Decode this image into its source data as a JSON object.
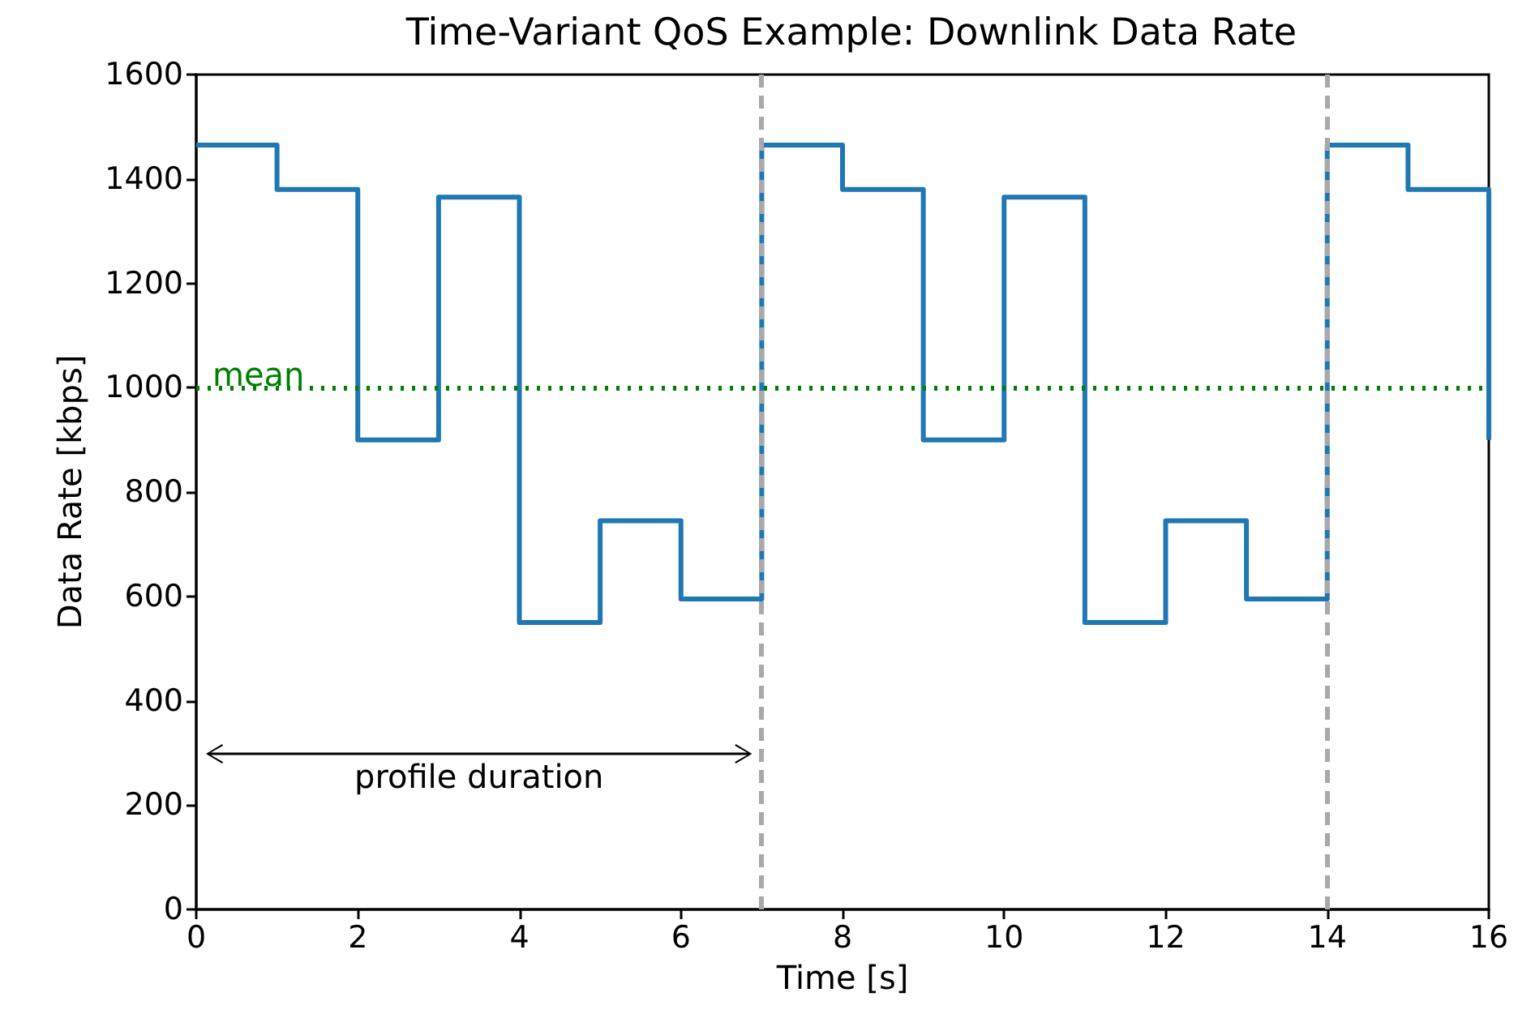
{
  "chart_data": {
    "type": "step",
    "title": "Time-Variant QoS Example: Downlink Data Rate",
    "xlabel": "Time [s]",
    "ylabel": "Data Rate [kbps]",
    "x": [
      0,
      1,
      2,
      3,
      4,
      5,
      6,
      7,
      8,
      9,
      10,
      11,
      12,
      13,
      14,
      15,
      16
    ],
    "series": [
      {
        "color": "#1f77b4",
        "values": [
          1465,
          1380,
          900,
          1365,
          550,
          745,
          595,
          1465,
          1380,
          900,
          1365,
          550,
          745,
          595,
          1465,
          1380,
          900
        ]
      }
    ],
    "xlim": [
      0,
      16
    ],
    "ylim": [
      0,
      1600
    ],
    "xticks": [
      0,
      2,
      4,
      6,
      8,
      10,
      12,
      14,
      16
    ],
    "yticks": [
      0,
      200,
      400,
      600,
      800,
      1000,
      1200,
      1400,
      1600
    ],
    "grid": false,
    "marker": "none",
    "line_style": "solid",
    "ref_lines": [
      {
        "axis": "y",
        "value": 1000,
        "label": "mean",
        "color": "#008000",
        "line_style": "dotted"
      },
      {
        "axis": "x",
        "value": 7,
        "color": "#a9a9a9",
        "line_style": "dashed"
      },
      {
        "axis": "x",
        "value": 14,
        "color": "#a9a9a9",
        "line_style": "dashed"
      }
    ],
    "annotations": [
      "profile duration"
    ]
  }
}
